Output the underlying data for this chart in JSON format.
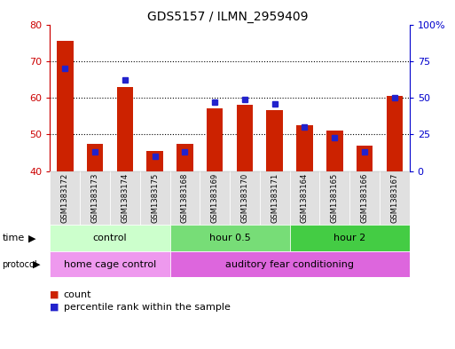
{
  "title": "GDS5157 / ILMN_2959409",
  "samples": [
    "GSM1383172",
    "GSM1383173",
    "GSM1383174",
    "GSM1383175",
    "GSM1383168",
    "GSM1383169",
    "GSM1383170",
    "GSM1383171",
    "GSM1383164",
    "GSM1383165",
    "GSM1383166",
    "GSM1383167"
  ],
  "red_values": [
    75.5,
    47.5,
    63.0,
    45.5,
    47.5,
    57.0,
    58.0,
    56.5,
    52.5,
    51.0,
    47.0,
    60.5
  ],
  "blue_values_pct": [
    70,
    13,
    62,
    10,
    13,
    47,
    49,
    46,
    30,
    23,
    13,
    50
  ],
  "ymin": 40,
  "ymax": 80,
  "left_yticks": [
    40,
    50,
    60,
    70,
    80
  ],
  "right_yticks_pct": [
    0,
    25,
    50,
    75,
    100
  ],
  "bar_color": "#cc2200",
  "blue_color": "#2222cc",
  "bg_color": "#ffffff",
  "time_groups": [
    {
      "label": "control",
      "start": 0,
      "end": 4,
      "color": "#ccffcc"
    },
    {
      "label": "hour 0.5",
      "start": 4,
      "end": 8,
      "color": "#77dd77"
    },
    {
      "label": "hour 2",
      "start": 8,
      "end": 12,
      "color": "#44cc44"
    }
  ],
  "protocol_groups": [
    {
      "label": "home cage control",
      "start": 0,
      "end": 4,
      "color": "#ee99ee"
    },
    {
      "label": "auditory fear conditioning",
      "start": 4,
      "end": 12,
      "color": "#dd66dd"
    }
  ],
  "legend_count_color": "#cc2200",
  "legend_pct_color": "#2222cc",
  "bar_width": 0.55,
  "xbg_color": "#e0e0e0",
  "spine_left_color": "#cc0000",
  "spine_right_color": "#0000cc"
}
